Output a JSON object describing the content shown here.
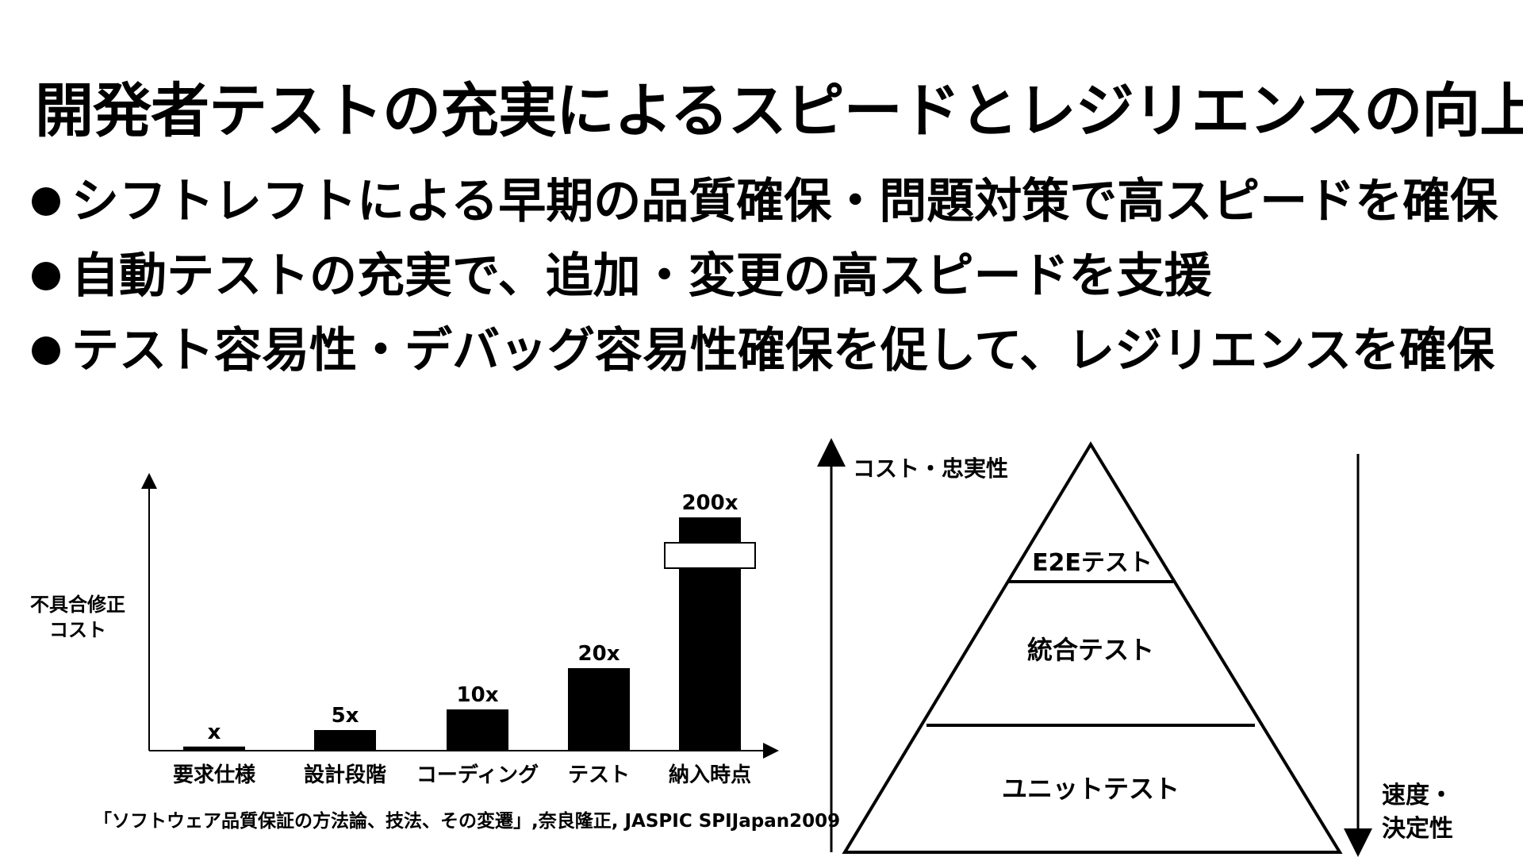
{
  "slide": {
    "title": "開発者テストの充実によるスピードとレジリエンスの向上",
    "bullets": [
      "シフトレフトによる早期の品質確保・問題対策で高スピードを確保",
      "自動テストの充実で、追加・変更の高スピードを支援",
      "テスト容易性・デバッグ容易性確保を促して、レジリエンスを確保"
    ]
  },
  "chart_data": {
    "type": "bar",
    "title": "",
    "ylabel_lines": [
      "不具合修正",
      "コスト"
    ],
    "categories": [
      "要求仕様",
      "設計段階",
      "コーディング",
      "テスト",
      "納入時点"
    ],
    "values": [
      1,
      5,
      10,
      20,
      200
    ],
    "data_labels": [
      "x",
      "5x",
      "10x",
      "20x",
      "200x"
    ],
    "axis_break_on": "納入時点",
    "grid": false
  },
  "citation": "「ソフトウェア品質保証の方法論、技法、その変遷」,奈良隆正, JASPIC SPIJapan2009",
  "pyramid": {
    "layers": [
      "E2Eテスト",
      "統合テスト",
      "ユニットテスト"
    ],
    "up_label": "コスト・忠実性",
    "down_label_lines": [
      "速度・",
      "決定性"
    ]
  }
}
